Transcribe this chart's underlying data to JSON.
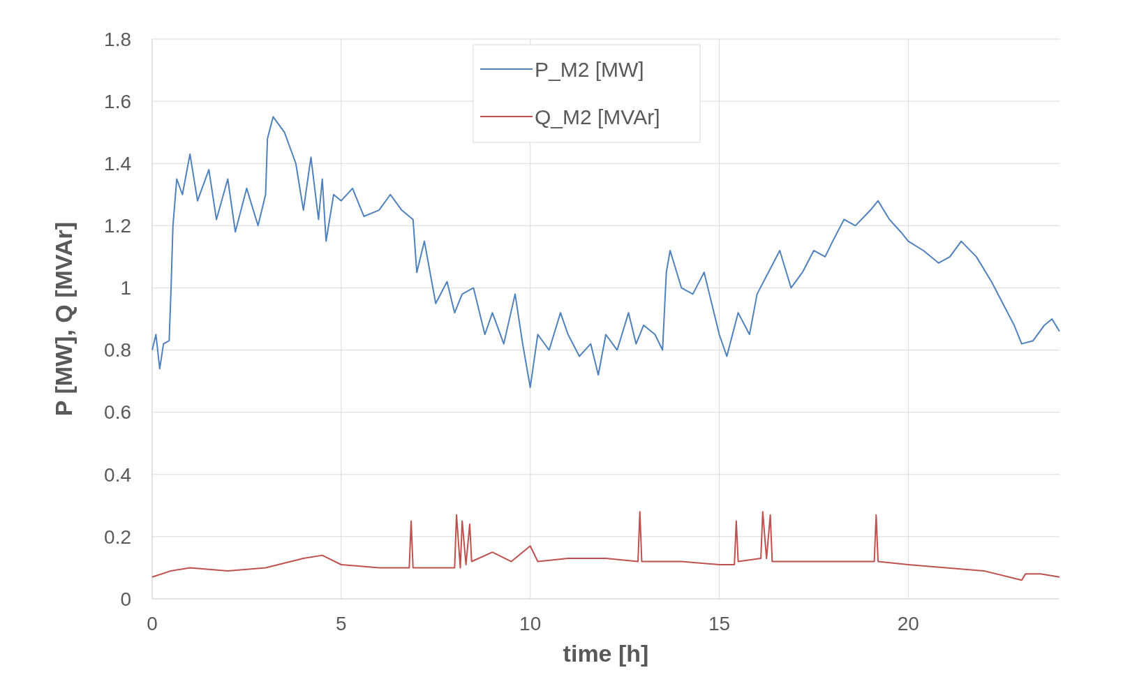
{
  "chart_data": {
    "type": "line",
    "xlabel": "time [h]",
    "ylabel": "P [MW], Q [MVAr]",
    "xlim": [
      0,
      24
    ],
    "xticks": [
      0,
      5,
      10,
      15,
      20
    ],
    "ylim": [
      0,
      1.8
    ],
    "yticks": [
      0,
      0.2,
      0.4,
      0.6,
      0.8,
      1,
      1.2,
      1.4,
      1.6,
      1.8
    ],
    "grid": true,
    "legend": "top",
    "line_style": "solid",
    "marker": "none",
    "series": [
      {
        "name": "P_M2 [MW]",
        "color": "#4f81bd",
        "x": [
          0,
          0.1,
          0.2,
          0.3,
          0.45,
          0.5,
          0.55,
          0.65,
          0.8,
          1,
          1.2,
          1.5,
          1.7,
          2,
          2.2,
          2.5,
          2.8,
          3,
          3.05,
          3.2,
          3.5,
          3.8,
          4,
          4.2,
          4.4,
          4.5,
          4.6,
          4.8,
          5,
          5.3,
          5.6,
          6,
          6.3,
          6.6,
          6.9,
          7,
          7.2,
          7.5,
          7.8,
          8,
          8.2,
          8.5,
          8.8,
          9,
          9.3,
          9.6,
          9.8,
          10,
          10.2,
          10.5,
          10.8,
          11,
          11.3,
          11.6,
          11.8,
          12,
          12.3,
          12.6,
          12.8,
          13,
          13.3,
          13.5,
          13.6,
          13.7,
          14,
          14.3,
          14.6,
          14.8,
          15,
          15.2,
          15.5,
          15.8,
          16,
          16.3,
          16.6,
          16.9,
          17.2,
          17.5,
          17.8,
          18,
          18.3,
          18.6,
          19,
          19.2,
          19.5,
          19.8,
          20,
          20.4,
          20.8,
          21.1,
          21.4,
          21.8,
          22.2,
          22.5,
          22.8,
          23,
          23.3,
          23.6,
          23.8,
          24
        ],
        "values": [
          0.8,
          0.85,
          0.74,
          0.82,
          0.83,
          1,
          1.2,
          1.35,
          1.3,
          1.43,
          1.28,
          1.38,
          1.22,
          1.35,
          1.18,
          1.32,
          1.2,
          1.3,
          1.48,
          1.55,
          1.5,
          1.4,
          1.25,
          1.42,
          1.22,
          1.35,
          1.15,
          1.3,
          1.28,
          1.32,
          1.23,
          1.25,
          1.3,
          1.25,
          1.22,
          1.05,
          1.15,
          0.95,
          1.02,
          0.92,
          0.98,
          1,
          0.85,
          0.92,
          0.82,
          0.98,
          0.82,
          0.68,
          0.85,
          0.8,
          0.92,
          0.85,
          0.78,
          0.82,
          0.72,
          0.85,
          0.8,
          0.92,
          0.82,
          0.88,
          0.85,
          0.8,
          1.05,
          1.12,
          1,
          0.98,
          1.05,
          0.95,
          0.85,
          0.78,
          0.92,
          0.85,
          0.98,
          1.05,
          1.12,
          1,
          1.05,
          1.12,
          1.1,
          1.15,
          1.22,
          1.2,
          1.25,
          1.28,
          1.22,
          1.18,
          1.15,
          1.12,
          1.08,
          1.1,
          1.15,
          1.1,
          1.02,
          0.95,
          0.88,
          0.82,
          0.83,
          0.88,
          0.9,
          0.86
        ]
      },
      {
        "name": "Q_M2 [MVAr]",
        "color": "#c0504d",
        "x": [
          0,
          0.5,
          1,
          2,
          3,
          4,
          4.5,
          5,
          6,
          6.8,
          6.85,
          6.9,
          7.5,
          8,
          8.05,
          8.15,
          8.2,
          8.3,
          8.4,
          8.45,
          9,
          9.5,
          10,
          10.2,
          11,
          12,
          12.85,
          12.9,
          12.95,
          14,
          15,
          15.4,
          15.45,
          15.5,
          16.1,
          16.15,
          16.25,
          16.35,
          16.4,
          17,
          18,
          19.1,
          19.15,
          19.2,
          20,
          21,
          22,
          23,
          23.1,
          23.5,
          24
        ],
        "values": [
          0.07,
          0.09,
          0.1,
          0.09,
          0.1,
          0.13,
          0.14,
          0.11,
          0.1,
          0.1,
          0.25,
          0.1,
          0.1,
          0.1,
          0.27,
          0.1,
          0.25,
          0.11,
          0.24,
          0.12,
          0.15,
          0.12,
          0.17,
          0.12,
          0.13,
          0.13,
          0.12,
          0.28,
          0.12,
          0.12,
          0.11,
          0.11,
          0.25,
          0.12,
          0.13,
          0.28,
          0.13,
          0.27,
          0.12,
          0.12,
          0.12,
          0.12,
          0.27,
          0.12,
          0.11,
          0.1,
          0.09,
          0.06,
          0.08,
          0.08,
          0.07
        ]
      }
    ]
  }
}
